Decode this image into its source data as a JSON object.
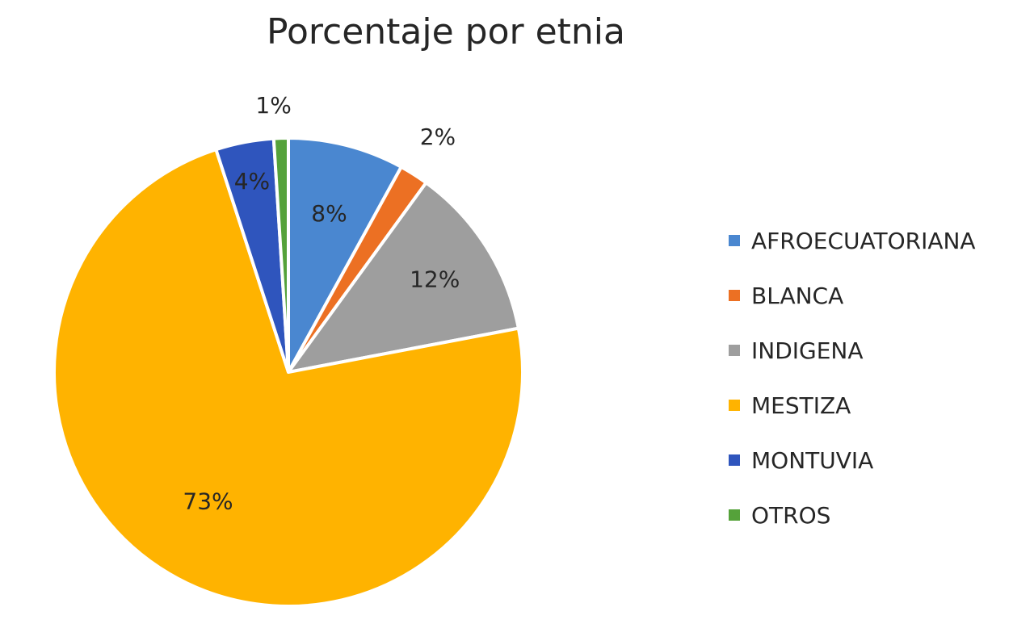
{
  "chart_data": {
    "type": "pie",
    "title": "Porcentaje por etnia",
    "categories": [
      "AFROECUATORIANA",
      "BLANCA",
      "INDIGENA",
      "MESTIZA",
      "MONTUVIA",
      "OTROS"
    ],
    "values": [
      8,
      2,
      12,
      73,
      4,
      1
    ],
    "labels": [
      "8%",
      "2%",
      "12%",
      "73%",
      "4%",
      "1%"
    ],
    "colors": [
      "#4A87D0",
      "#EC7023",
      "#9E9E9E",
      "#FFB300",
      "#2F55BD",
      "#55A23A"
    ],
    "legend": "right",
    "start_angle_deg": 0,
    "direction": "clockwise"
  }
}
